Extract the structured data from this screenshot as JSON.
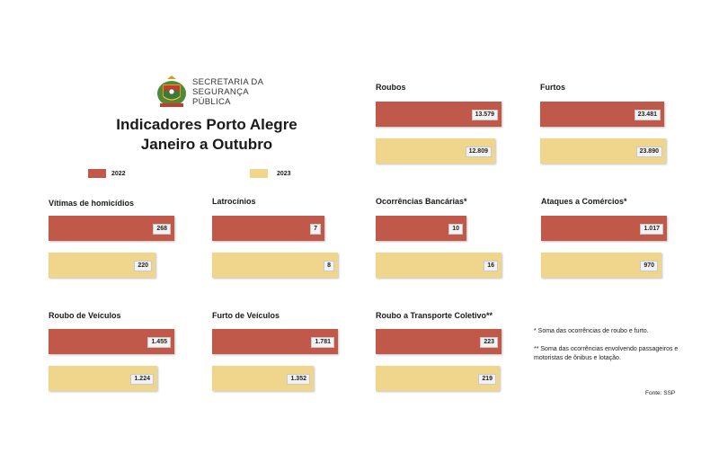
{
  "header": {
    "logo_line1": "SECRETARIA DA",
    "logo_line2": "SEGURANÇA",
    "logo_line3": "PÚBLICA",
    "title_line1": "Indicadores Porto Alegre",
    "title_line2": "Janeiro a Outubro"
  },
  "colors": {
    "y2022": "#c0594a",
    "y2023": "#f0d58c"
  },
  "legend": {
    "label_2022": "2022",
    "label_2023": "2023"
  },
  "chart_data": [
    {
      "type": "bar",
      "title": "Roubos",
      "categories": [
        "2022",
        "2023"
      ],
      "values": [
        13579,
        12809
      ],
      "labels": [
        "13.579",
        "12.809"
      ]
    },
    {
      "type": "bar",
      "title": "Furtos",
      "categories": [
        "2022",
        "2023"
      ],
      "values": [
        23481,
        23890
      ],
      "labels": [
        "23.481",
        "23.890"
      ]
    },
    {
      "type": "bar",
      "title": "Vítimas de homicídios",
      "categories": [
        "2022",
        "2023"
      ],
      "values": [
        268,
        220
      ],
      "labels": [
        "268",
        "220"
      ]
    },
    {
      "type": "bar",
      "title": "Latrocínios",
      "categories": [
        "2022",
        "2023"
      ],
      "values": [
        7,
        8
      ],
      "labels": [
        "7",
        "8"
      ]
    },
    {
      "type": "bar",
      "title": "Ocorrências Bancárias*",
      "categories": [
        "2022",
        "2023"
      ],
      "values": [
        10,
        16
      ],
      "labels": [
        "10",
        "16"
      ]
    },
    {
      "type": "bar",
      "title": "Ataques a Comércios*",
      "categories": [
        "2022",
        "2023"
      ],
      "values": [
        1017,
        970
      ],
      "labels": [
        "1.017",
        "970"
      ]
    },
    {
      "type": "bar",
      "title": "Roubo de Veículos",
      "categories": [
        "2022",
        "2023"
      ],
      "values": [
        1455,
        1224
      ],
      "labels": [
        "1.455",
        "1.224"
      ]
    },
    {
      "type": "bar",
      "title": "Furto de Veículos",
      "categories": [
        "2022",
        "2023"
      ],
      "values": [
        1781,
        1352
      ],
      "labels": [
        "1.781",
        "1.352"
      ]
    },
    {
      "type": "bar",
      "title": "Roubo a Transporte Coletivo**",
      "categories": [
        "2022",
        "2023"
      ],
      "values": [
        223,
        219
      ],
      "labels": [
        "223",
        "219"
      ]
    }
  ],
  "notes": {
    "note1": "* Soma das ocorrências de roubo e furto.",
    "note2": "** Soma das ocorrências envolvendo passageiros e motoristas de ônibus e lotação.",
    "source": "Fonte: SSP"
  }
}
